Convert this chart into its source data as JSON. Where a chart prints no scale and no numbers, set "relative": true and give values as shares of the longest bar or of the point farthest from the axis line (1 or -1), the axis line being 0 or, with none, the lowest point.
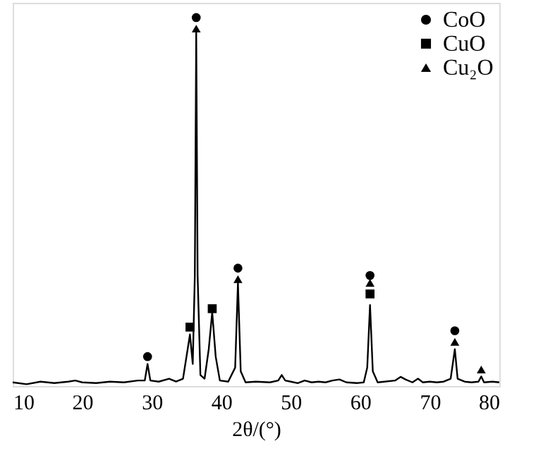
{
  "chart_data": {
    "type": "line",
    "xlabel": "2θ/(°)",
    "xlim": [
      10,
      80
    ],
    "xticks": [
      10,
      20,
      30,
      40,
      50,
      60,
      70,
      80
    ],
    "relative": true,
    "tick_labels": "x",
    "grid": false,
    "legend": "top right",
    "series": [
      {
        "color": "#000000",
        "marker": "none",
        "line_style": "solid",
        "x": [
          10,
          12,
          14,
          16,
          18,
          19,
          20,
          22,
          24,
          26,
          28,
          29.0,
          29.4,
          29.8,
          31,
          32.5,
          33.5,
          34.5,
          35.0,
          35.5,
          35.9,
          36.2,
          36.4,
          36.6,
          37.0,
          37.6,
          38.2,
          38.7,
          39.2,
          39.8,
          41,
          42.0,
          42.4,
          42.8,
          43.5,
          45,
          47,
          48.2,
          48.7,
          49.2,
          50,
          51,
          52,
          53,
          54,
          55,
          56,
          57,
          58,
          59.5,
          60.5,
          61.0,
          61.4,
          61.8,
          62.5,
          63.5,
          65,
          65.8,
          66.5,
          67.5,
          68.3,
          69,
          70,
          71,
          72,
          73.0,
          73.6,
          74.0,
          75,
          76,
          77,
          77.4,
          77.8,
          79,
          80
        ],
        "values": [
          0.01,
          0.005,
          0.012,
          0.008,
          0.012,
          0.015,
          0.01,
          0.008,
          0.012,
          0.01,
          0.015,
          0.015,
          0.06,
          0.015,
          0.012,
          0.02,
          0.012,
          0.02,
          0.08,
          0.14,
          0.06,
          0.3,
          0.96,
          0.3,
          0.03,
          0.02,
          0.1,
          0.2,
          0.08,
          0.015,
          0.012,
          0.05,
          0.28,
          0.04,
          0.01,
          0.012,
          0.01,
          0.015,
          0.03,
          0.015,
          0.012,
          0.008,
          0.015,
          0.01,
          0.012,
          0.01,
          0.015,
          0.018,
          0.01,
          0.008,
          0.01,
          0.05,
          0.22,
          0.04,
          0.01,
          0.012,
          0.015,
          0.025,
          0.018,
          0.01,
          0.02,
          0.01,
          0.012,
          0.01,
          0.012,
          0.02,
          0.1,
          0.02,
          0.012,
          0.01,
          0.012,
          0.026,
          0.01,
          0.012,
          0.01
        ]
      },
      {
        "name": "CoO",
        "type": "scatter",
        "marker": "circle",
        "color": "#000000",
        "x": [
          29.4,
          36.4,
          42.4,
          61.4,
          73.6
        ],
        "values": [
          0.08,
          1.0,
          0.32,
          0.3,
          0.15
        ]
      },
      {
        "name": "CuO",
        "type": "scatter",
        "marker": "square",
        "color": "#000000",
        "x": [
          35.5,
          38.7,
          61.4
        ],
        "values": [
          0.16,
          0.21,
          0.25
        ]
      },
      {
        "name": "Cu₂O",
        "type": "scatter",
        "marker": "triangle",
        "color": "#000000",
        "x": [
          36.4,
          42.4,
          61.4,
          73.6,
          77.4
        ],
        "values": [
          0.97,
          0.29,
          0.28,
          0.12,
          0.045
        ]
      }
    ]
  }
}
